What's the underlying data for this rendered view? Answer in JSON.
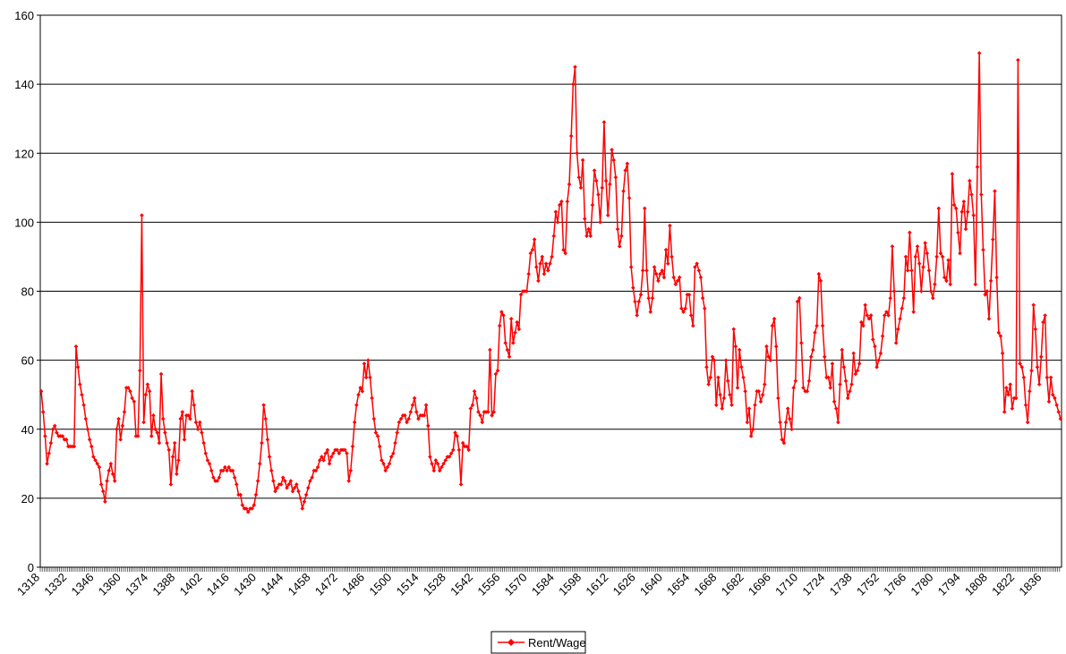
{
  "chart_data": {
    "type": "line",
    "categories": [
      "1318",
      null,
      null,
      null,
      null,
      null,
      null,
      null,
      null,
      null,
      null,
      null,
      null,
      null,
      "1332",
      null,
      null,
      null,
      null,
      null,
      null,
      null,
      null,
      null,
      null,
      null,
      null,
      null,
      "1346",
      null,
      null,
      null,
      null,
      null,
      null,
      null,
      null,
      null,
      null,
      null,
      null,
      null,
      "1360",
      null,
      null,
      null,
      null,
      null,
      null,
      null,
      null,
      null,
      null,
      null,
      null,
      null,
      "1374",
      null,
      null,
      null,
      null,
      null,
      null,
      null,
      null,
      null,
      null,
      null,
      null,
      null,
      "1388",
      null,
      null,
      null,
      null,
      null,
      null,
      null,
      null,
      null,
      null,
      null,
      null,
      null,
      "1402",
      null,
      null,
      null,
      null,
      null,
      null,
      null,
      null,
      null,
      null,
      null,
      null,
      null,
      "1416",
      null,
      null,
      null,
      null,
      null,
      null,
      null,
      null,
      null,
      null,
      null,
      null,
      null,
      "1430",
      null,
      null,
      null,
      null,
      null,
      null,
      null,
      null,
      null,
      null,
      null,
      null,
      null,
      "1444",
      null,
      null,
      null,
      null,
      null,
      null,
      null,
      null,
      null,
      null,
      null,
      null,
      null,
      "1458",
      null,
      null,
      null,
      null,
      null,
      null,
      null,
      null,
      null,
      null,
      null,
      null,
      null,
      "1472",
      null,
      null,
      null,
      null,
      null,
      null,
      null,
      null,
      null,
      null,
      null,
      null,
      null,
      "1486",
      null,
      null,
      null,
      null,
      null,
      null,
      null,
      null,
      null,
      null,
      null,
      null,
      null,
      "1500",
      null,
      null,
      null,
      null,
      null,
      null,
      null,
      null,
      null,
      null,
      null,
      null,
      null,
      "1514",
      null,
      null,
      null,
      null,
      null,
      null,
      null,
      null,
      null,
      null,
      null,
      null,
      null,
      "1528",
      null,
      null,
      null,
      null,
      null,
      null,
      null,
      null,
      null,
      null,
      null,
      null,
      null,
      "1542",
      null,
      null,
      null,
      null,
      null,
      null,
      null,
      null,
      null,
      null,
      null,
      null,
      null,
      "1556",
      null,
      null,
      null,
      null,
      null,
      null,
      null,
      null,
      null,
      null,
      null,
      null,
      null,
      "1570",
      null,
      null,
      null,
      null,
      null,
      null,
      null,
      null,
      null,
      null,
      null,
      null,
      null,
      "1584",
      null,
      null,
      null,
      null,
      null,
      null,
      null,
      null,
      null,
      null,
      null,
      null,
      null,
      "1598",
      null,
      null,
      null,
      null,
      null,
      null,
      null,
      null,
      null,
      null,
      null,
      null,
      null,
      "1612",
      null,
      null,
      null,
      null,
      null,
      null,
      null,
      null,
      null,
      null,
      null,
      null,
      null,
      "1626",
      null,
      null,
      null,
      null,
      null,
      null,
      null,
      null,
      null,
      null,
      null,
      null,
      null,
      "1640",
      null,
      null,
      null,
      null,
      null,
      null,
      null,
      null,
      null,
      null,
      null,
      null,
      null,
      "1654",
      null,
      null,
      null,
      null,
      null,
      null,
      null,
      null,
      null,
      null,
      null,
      null,
      null,
      "1668",
      null,
      null,
      null,
      null,
      null,
      null,
      null,
      null,
      null,
      null,
      null,
      null,
      null,
      "1682",
      null,
      null,
      null,
      null,
      null,
      null,
      null,
      null,
      null,
      null,
      null,
      null,
      null,
      "1696",
      null,
      null,
      null,
      null,
      null,
      null,
      null,
      null,
      null,
      null,
      null,
      null,
      null,
      "1710",
      null,
      null,
      null,
      null,
      null,
      null,
      null,
      null,
      null,
      null,
      null,
      null,
      null,
      "1724",
      null,
      null,
      null,
      null,
      null,
      null,
      null,
      null,
      null,
      null,
      null,
      null,
      null,
      "1738",
      null,
      null,
      null,
      null,
      null,
      null,
      null,
      null,
      null,
      null,
      null,
      null,
      null,
      "1752",
      null,
      null,
      null,
      null,
      null,
      null,
      null,
      null,
      null,
      null,
      null,
      null,
      null,
      "1766",
      null,
      null,
      null,
      null,
      null,
      null,
      null,
      null,
      null,
      null,
      null,
      null,
      null,
      "1780",
      null,
      null,
      null,
      null,
      null,
      null,
      null,
      null,
      null,
      null,
      null,
      null,
      null,
      "1794",
      null,
      null,
      null,
      null,
      null,
      null,
      null,
      null,
      null,
      null,
      null,
      null,
      null,
      "1808",
      null,
      null,
      null,
      null,
      null,
      null,
      null,
      null,
      null,
      null,
      null,
      null,
      null,
      "1822",
      null,
      null,
      null,
      null,
      null,
      null,
      null,
      null,
      null,
      null,
      null,
      null,
      null,
      "1836",
      null,
      null,
      null,
      null,
      null,
      null,
      null,
      null,
      null
    ],
    "series": [
      {
        "name": "Rent/Wage",
        "color": "#ff0000",
        "values": [
          51,
          45,
          38,
          30,
          33,
          36,
          40,
          41,
          39,
          38,
          38,
          38,
          37,
          37,
          35,
          35,
          35,
          35,
          64,
          58,
          53,
          50,
          47,
          43,
          40,
          37,
          35,
          32,
          31,
          30,
          29,
          24,
          22,
          19,
          25,
          28,
          30,
          27,
          25,
          40,
          43,
          37,
          41,
          45,
          52,
          52,
          51,
          49,
          48,
          38,
          38,
          57,
          102,
          42,
          50,
          53,
          51,
          38,
          44,
          40,
          39,
          36,
          56,
          43,
          39,
          36,
          34,
          24,
          32,
          36,
          27,
          31,
          43,
          45,
          37,
          44,
          44,
          43,
          51,
          47,
          42,
          40,
          42,
          39,
          36,
          33,
          31,
          30,
          28,
          26,
          25,
          25,
          26,
          28,
          28,
          29,
          28,
          29,
          28,
          28,
          26,
          24,
          21,
          21,
          18,
          17,
          17,
          16,
          17,
          17,
          18,
          21,
          25,
          30,
          36,
          47,
          43,
          37,
          32,
          28,
          25,
          22,
          23,
          24,
          24,
          26,
          25,
          23,
          24,
          25,
          22,
          23,
          24,
          22,
          20,
          17,
          19,
          21,
          23,
          25,
          26,
          28,
          28,
          29,
          31,
          32,
          31,
          33,
          34,
          30,
          32,
          33,
          34,
          34,
          33,
          34,
          34,
          34,
          33,
          25,
          28,
          35,
          42,
          47,
          50,
          52,
          51,
          59,
          55,
          60,
          55,
          49,
          43,
          39,
          38,
          35,
          31,
          30,
          28,
          29,
          30,
          32,
          33,
          36,
          39,
          42,
          43,
          44,
          44,
          42,
          43,
          45,
          47,
          49,
          45,
          43,
          44,
          44,
          44,
          47,
          41,
          32,
          30,
          28,
          31,
          30,
          28,
          29,
          30,
          31,
          32,
          32,
          33,
          34,
          39,
          38,
          34,
          24,
          36,
          35,
          35,
          34,
          46,
          47,
          51,
          49,
          45,
          44,
          42,
          45,
          45,
          45,
          63,
          44,
          45,
          56,
          57,
          70,
          74,
          73,
          65,
          63,
          61,
          72,
          65,
          68,
          71,
          69,
          79,
          80,
          80,
          80,
          85,
          91,
          92,
          95,
          87,
          83,
          88,
          90,
          85,
          88,
          86,
          88,
          90,
          96,
          103,
          100,
          105,
          106,
          92,
          91,
          106,
          111,
          125,
          140,
          145,
          120,
          113,
          110,
          118,
          101,
          96,
          98,
          96,
          105,
          115,
          112,
          108,
          100,
          110,
          129,
          112,
          102,
          111,
          121,
          118,
          113,
          98,
          93,
          96,
          109,
          115,
          117,
          107,
          87,
          81,
          77,
          73,
          77,
          79,
          86,
          104,
          86,
          78,
          74,
          78,
          87,
          85,
          83,
          85,
          86,
          84,
          92,
          88,
          99,
          90,
          84,
          82,
          83,
          84,
          75,
          74,
          75,
          79,
          79,
          73,
          70,
          87,
          88,
          86,
          84,
          78,
          75,
          58,
          53,
          55,
          61,
          60,
          47,
          55,
          50,
          46,
          49,
          60,
          54,
          50,
          47,
          69,
          64,
          52,
          63,
          58,
          55,
          51,
          42,
          46,
          38,
          40,
          47,
          51,
          51,
          48,
          50,
          53,
          64,
          61,
          60,
          70,
          72,
          64,
          49,
          42,
          37,
          36,
          42,
          46,
          43,
          40,
          52,
          54,
          77,
          78,
          65,
          52,
          51,
          51,
          54,
          61,
          63,
          68,
          70,
          85,
          83,
          70,
          61,
          55,
          55,
          52,
          59,
          48,
          46,
          42,
          53,
          63,
          58,
          54,
          49,
          51,
          53,
          62,
          56,
          57,
          59,
          71,
          70,
          76,
          73,
          72,
          73,
          66,
          64,
          58,
          60,
          62,
          67,
          73,
          74,
          73,
          78,
          93,
          80,
          65,
          69,
          72,
          75,
          78,
          90,
          86,
          97,
          86,
          74,
          90,
          93,
          88,
          80,
          87,
          94,
          91,
          86,
          80,
          78,
          82,
          90,
          104,
          91,
          90,
          84,
          83,
          89,
          82,
          114,
          105,
          104,
          97,
          91,
          103,
          106,
          98,
          103,
          112,
          108,
          102,
          82,
          116,
          149,
          108,
          92,
          79,
          80,
          72,
          83,
          95,
          109,
          84,
          68,
          67,
          62,
          45,
          52,
          50,
          53,
          46,
          49,
          49,
          147,
          59,
          58,
          55,
          47,
          42,
          51,
          57,
          76,
          69,
          58,
          53,
          61,
          71,
          73,
          55,
          48,
          55,
          50,
          49,
          47,
          45,
          43
        ]
      }
    ],
    "ylim": [
      0,
      160
    ],
    "yticks": [
      0,
      20,
      40,
      60,
      80,
      100,
      120,
      140,
      160
    ],
    "grid": true,
    "legend": "bottom"
  }
}
